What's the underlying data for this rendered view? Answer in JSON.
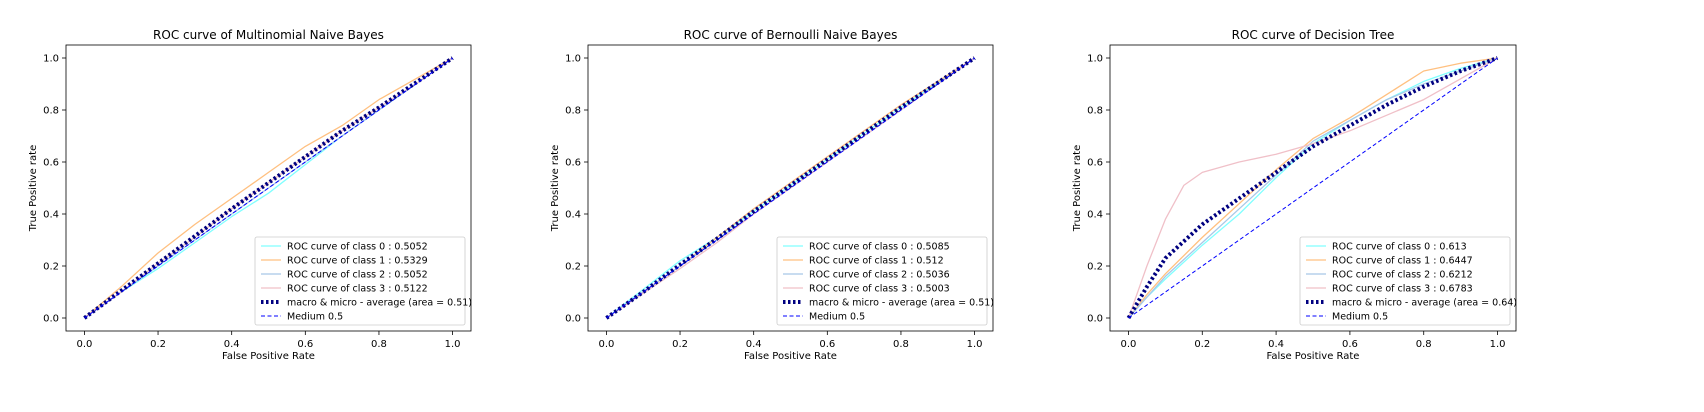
{
  "chart_data": [
    {
      "type": "line",
      "title": "ROC curve of Multinomial Naive Bayes",
      "xlabel": "False Positive Rate",
      "ylabel": "True Positive rate",
      "xlim": [
        -0.05,
        1.05
      ],
      "ylim": [
        -0.05,
        1.05
      ],
      "xticks": [
        "0.0",
        "0.2",
        "0.4",
        "0.6",
        "0.8",
        "1.0"
      ],
      "yticks": [
        "0.0",
        "0.2",
        "0.4",
        "0.6",
        "0.8",
        "1.0"
      ],
      "legend_position": "lower-right",
      "series": [
        {
          "name": "ROC curve of class 0 : 0.5052",
          "color": "#80ffff",
          "style": "solid",
          "x": [
            0,
            0.1,
            0.2,
            0.3,
            0.4,
            0.5,
            0.6,
            0.7,
            0.8,
            0.9,
            1.0
          ],
          "y": [
            0,
            0.1,
            0.19,
            0.29,
            0.39,
            0.48,
            0.59,
            0.7,
            0.8,
            0.9,
            1.0
          ]
        },
        {
          "name": "ROC curve of class 1 : 0.5329",
          "color": "#ffc080",
          "style": "solid",
          "x": [
            0,
            0.1,
            0.2,
            0.3,
            0.4,
            0.5,
            0.6,
            0.7,
            0.8,
            0.9,
            1.0
          ],
          "y": [
            0,
            0.12,
            0.25,
            0.36,
            0.46,
            0.56,
            0.66,
            0.74,
            0.84,
            0.92,
            1.0
          ]
        },
        {
          "name": "ROC curve of class 2 : 0.5052",
          "color": "#a8c8e8",
          "style": "solid",
          "x": [
            0,
            0.1,
            0.2,
            0.3,
            0.4,
            0.5,
            0.6,
            0.7,
            0.8,
            0.9,
            1.0
          ],
          "y": [
            0,
            0.1,
            0.2,
            0.3,
            0.4,
            0.5,
            0.6,
            0.7,
            0.8,
            0.9,
            1.0
          ]
        },
        {
          "name": "ROC curve of class 3 : 0.5122",
          "color": "#f0c0c8",
          "style": "solid",
          "x": [
            0,
            0.1,
            0.2,
            0.3,
            0.4,
            0.5,
            0.6,
            0.7,
            0.8,
            0.9,
            1.0
          ],
          "y": [
            0,
            0.1,
            0.21,
            0.31,
            0.42,
            0.52,
            0.62,
            0.72,
            0.81,
            0.9,
            1.0
          ]
        },
        {
          "name": "macro & micro - average (area = 0.51)",
          "color": "#000080",
          "style": "dotted",
          "x": [
            0,
            0.1,
            0.2,
            0.3,
            0.4,
            0.5,
            0.6,
            0.7,
            0.8,
            0.9,
            1.0
          ],
          "y": [
            0,
            0.105,
            0.21,
            0.315,
            0.42,
            0.52,
            0.62,
            0.72,
            0.81,
            0.905,
            1.0
          ]
        },
        {
          "name": "Medium 0.5",
          "color": "#0000ff",
          "style": "dashed",
          "x": [
            0,
            1
          ],
          "y": [
            0,
            1
          ]
        }
      ]
    },
    {
      "type": "line",
      "title": "ROC curve of Bernoulli Naive Bayes",
      "xlabel": "False Positive Rate",
      "ylabel": "True Positive rate",
      "xlim": [
        -0.05,
        1.05
      ],
      "ylim": [
        -0.05,
        1.05
      ],
      "xticks": [
        "0.0",
        "0.2",
        "0.4",
        "0.6",
        "0.8",
        "1.0"
      ],
      "yticks": [
        "0.0",
        "0.2",
        "0.4",
        "0.6",
        "0.8",
        "1.0"
      ],
      "legend_position": "lower-right",
      "series": [
        {
          "name": "ROC curve of class 0 : 0.5085",
          "color": "#80ffff",
          "style": "solid",
          "x": [
            0,
            0.1,
            0.2,
            0.3,
            0.4,
            0.5,
            0.6,
            0.7,
            0.8,
            0.9,
            1.0
          ],
          "y": [
            0,
            0.11,
            0.22,
            0.31,
            0.41,
            0.51,
            0.61,
            0.71,
            0.81,
            0.905,
            1.0
          ]
        },
        {
          "name": "ROC curve of class 1 : 0.512",
          "color": "#ffc080",
          "style": "solid",
          "x": [
            0,
            0.1,
            0.2,
            0.3,
            0.4,
            0.5,
            0.6,
            0.7,
            0.8,
            0.9,
            1.0
          ],
          "y": [
            0,
            0.1,
            0.2,
            0.31,
            0.42,
            0.52,
            0.62,
            0.72,
            0.82,
            0.91,
            1.0
          ]
        },
        {
          "name": "ROC curve of class 2 : 0.5036",
          "color": "#a8c8e8",
          "style": "solid",
          "x": [
            0,
            0.1,
            0.2,
            0.3,
            0.4,
            0.5,
            0.6,
            0.7,
            0.8,
            0.9,
            1.0
          ],
          "y": [
            0,
            0.1,
            0.2,
            0.3,
            0.4,
            0.5,
            0.6,
            0.7,
            0.8,
            0.9,
            1.0
          ]
        },
        {
          "name": "ROC curve of class 3 : 0.5003",
          "color": "#f0c0c8",
          "style": "solid",
          "x": [
            0,
            0.1,
            0.2,
            0.3,
            0.4,
            0.5,
            0.6,
            0.7,
            0.8,
            0.9,
            1.0
          ],
          "y": [
            0,
            0.095,
            0.19,
            0.29,
            0.4,
            0.5,
            0.6,
            0.7,
            0.8,
            0.9,
            1.0
          ]
        },
        {
          "name": "macro & micro - average (area = 0.51)",
          "color": "#000080",
          "style": "dotted",
          "x": [
            0,
            0.1,
            0.2,
            0.3,
            0.4,
            0.5,
            0.6,
            0.7,
            0.8,
            0.9,
            1.0
          ],
          "y": [
            0,
            0.1,
            0.205,
            0.305,
            0.41,
            0.51,
            0.61,
            0.71,
            0.81,
            0.905,
            1.0
          ]
        },
        {
          "name": "Medium 0.5",
          "color": "#0000ff",
          "style": "dashed",
          "x": [
            0,
            1
          ],
          "y": [
            0,
            1
          ]
        }
      ]
    },
    {
      "type": "line",
      "title": "ROC curve of Decision Tree",
      "xlabel": "False Positive Rate",
      "ylabel": "True Positive rate",
      "xlim": [
        -0.05,
        1.05
      ],
      "ylim": [
        -0.05,
        1.05
      ],
      "xticks": [
        "0.0",
        "0.2",
        "0.4",
        "0.6",
        "0.8",
        "1.0"
      ],
      "yticks": [
        "0.0",
        "0.2",
        "0.4",
        "0.6",
        "0.8",
        "1.0"
      ],
      "legend_position": "lower-right",
      "series": [
        {
          "name": "ROC curve of class 0 : 0.613",
          "color": "#80ffff",
          "style": "solid",
          "x": [
            0,
            0.05,
            0.1,
            0.2,
            0.3,
            0.4,
            0.5,
            0.6,
            0.7,
            0.8,
            0.9,
            1.0
          ],
          "y": [
            0,
            0.08,
            0.15,
            0.28,
            0.4,
            0.54,
            0.67,
            0.76,
            0.84,
            0.91,
            0.96,
            1.0
          ]
        },
        {
          "name": "ROC curve of class 1 : 0.6447",
          "color": "#ffc080",
          "style": "solid",
          "x": [
            0,
            0.05,
            0.1,
            0.2,
            0.3,
            0.4,
            0.5,
            0.6,
            0.7,
            0.8,
            0.9,
            1.0
          ],
          "y": [
            0,
            0.09,
            0.17,
            0.31,
            0.44,
            0.57,
            0.69,
            0.77,
            0.86,
            0.95,
            0.98,
            1.0
          ]
        },
        {
          "name": "ROC curve of class 2 : 0.6212",
          "color": "#a8c8e8",
          "style": "solid",
          "x": [
            0,
            0.05,
            0.1,
            0.2,
            0.3,
            0.4,
            0.5,
            0.6,
            0.7,
            0.8,
            0.9,
            1.0
          ],
          "y": [
            0,
            0.08,
            0.16,
            0.29,
            0.42,
            0.55,
            0.68,
            0.76,
            0.84,
            0.9,
            0.95,
            1.0
          ]
        },
        {
          "name": "ROC curve of class 3 : 0.6783",
          "color": "#f0c0c8",
          "style": "solid",
          "x": [
            0,
            0.05,
            0.1,
            0.15,
            0.2,
            0.3,
            0.4,
            0.5,
            0.6,
            0.7,
            0.8,
            0.9,
            1.0
          ],
          "y": [
            0,
            0.2,
            0.38,
            0.51,
            0.56,
            0.6,
            0.63,
            0.67,
            0.72,
            0.78,
            0.84,
            0.92,
            1.0
          ]
        },
        {
          "name": "macro & micro - average (area = 0.64)",
          "color": "#000080",
          "style": "dotted",
          "x": [
            0,
            0.05,
            0.1,
            0.2,
            0.3,
            0.4,
            0.5,
            0.6,
            0.7,
            0.8,
            0.9,
            1.0
          ],
          "y": [
            0,
            0.12,
            0.23,
            0.36,
            0.46,
            0.56,
            0.66,
            0.74,
            0.82,
            0.89,
            0.95,
            1.0
          ]
        },
        {
          "name": "Medium 0.5",
          "color": "#0000ff",
          "style": "dashed",
          "x": [
            0,
            1
          ],
          "y": [
            0,
            1
          ]
        }
      ]
    }
  ]
}
